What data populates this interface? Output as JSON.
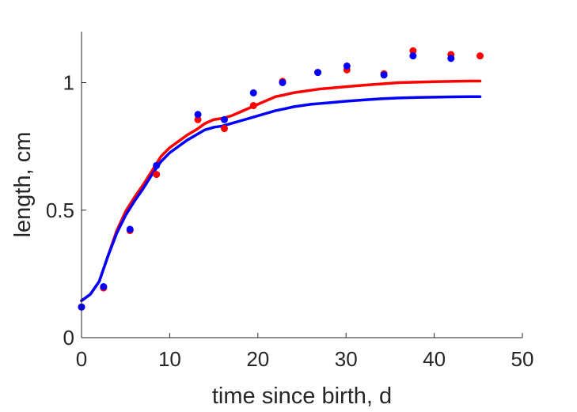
{
  "chart_data": {
    "type": "scatter",
    "title": "",
    "xlabel": "time since birth, d",
    "ylabel": "length, cm",
    "xlim": [
      0,
      50
    ],
    "ylim": [
      0,
      1.2
    ],
    "xticks": [
      0,
      10,
      20,
      30,
      40,
      50
    ],
    "xtick_labels": [
      "0",
      "10",
      "20",
      "30",
      "40",
      "50"
    ],
    "yticks": [
      0,
      0.5,
      1
    ],
    "ytick_labels": [
      "0",
      "0.5",
      "1"
    ],
    "grid": false,
    "legend": "none",
    "series": [
      {
        "kind": "points",
        "color": "#ff0000",
        "x": [
          0,
          2.5,
          5.5,
          8.5,
          13.2,
          16.2,
          19.5,
          22.8,
          26.8,
          30.1,
          34.3,
          37.6,
          41.9,
          45.2
        ],
        "y": [
          0.12,
          0.195,
          0.42,
          0.64,
          0.855,
          0.82,
          0.91,
          1.005,
          1.04,
          1.05,
          1.035,
          1.125,
          1.11,
          1.105
        ]
      },
      {
        "kind": "points",
        "color": "#0000ff",
        "x": [
          0,
          2.5,
          5.5,
          8.5,
          13.2,
          16.2,
          19.5,
          22.8,
          26.8,
          30.1,
          34.3,
          37.6,
          41.9
        ],
        "y": [
          0.12,
          0.2,
          0.425,
          0.675,
          0.875,
          0.855,
          0.96,
          1.0,
          1.04,
          1.065,
          1.03,
          1.105,
          1.095
        ]
      },
      {
        "kind": "line",
        "color": "#ff0000",
        "x": [
          0,
          1,
          2,
          3,
          4,
          5,
          6,
          7,
          8,
          9,
          10,
          11,
          12,
          13,
          14,
          15,
          16,
          17,
          18,
          19,
          20,
          21,
          22,
          23,
          24,
          25,
          26,
          27,
          28,
          29,
          30,
          32,
          34,
          36,
          38,
          40,
          42,
          44,
          45.2
        ],
        "y": [
          0.145,
          0.17,
          0.22,
          0.32,
          0.42,
          0.495,
          0.55,
          0.6,
          0.655,
          0.71,
          0.745,
          0.77,
          0.795,
          0.815,
          0.84,
          0.855,
          0.86,
          0.87,
          0.885,
          0.9,
          0.915,
          0.93,
          0.945,
          0.952,
          0.96,
          0.965,
          0.97,
          0.975,
          0.978,
          0.981,
          0.984,
          0.99,
          0.995,
          1.0,
          1.002,
          1.004,
          1.005,
          1.006,
          1.006
        ]
      },
      {
        "kind": "line",
        "color": "#0000ff",
        "x": [
          0,
          1,
          2,
          3,
          4,
          5,
          6,
          7,
          8,
          9,
          10,
          11,
          12,
          13,
          14,
          15,
          16,
          17,
          18,
          19,
          20,
          21,
          22,
          23,
          24,
          25,
          26,
          27,
          28,
          29,
          30,
          32,
          34,
          36,
          38,
          40,
          42,
          44,
          45.2
        ],
        "y": [
          0.145,
          0.17,
          0.22,
          0.32,
          0.41,
          0.48,
          0.535,
          0.585,
          0.64,
          0.69,
          0.725,
          0.75,
          0.775,
          0.795,
          0.815,
          0.825,
          0.83,
          0.84,
          0.85,
          0.86,
          0.87,
          0.88,
          0.89,
          0.897,
          0.905,
          0.91,
          0.915,
          0.918,
          0.921,
          0.924,
          0.927,
          0.932,
          0.937,
          0.94,
          0.942,
          0.943,
          0.944,
          0.945,
          0.945
        ]
      }
    ]
  }
}
